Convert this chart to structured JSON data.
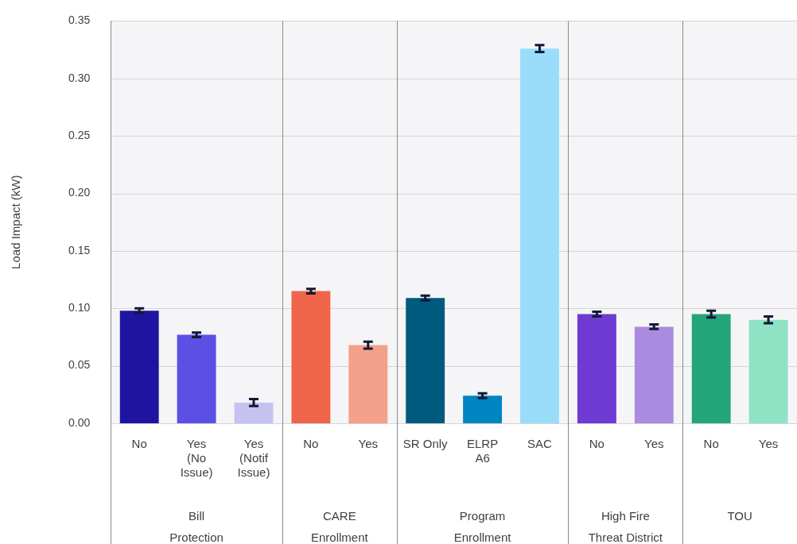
{
  "chart_data": {
    "type": "bar",
    "ylabel": "Load Impact (kW)",
    "categories": [
      "No",
      "Yes (No Issue)",
      "Yes (Notif Issue)",
      "No",
      "Yes",
      "SR Only",
      "ELRP A6",
      "SAC",
      "No",
      "Yes",
      "No",
      "Yes"
    ],
    "values": [
      0.098,
      0.077,
      0.018,
      0.115,
      0.068,
      0.109,
      0.024,
      0.326,
      0.095,
      0.084,
      0.095,
      0.09
    ],
    "errors": [
      0.002,
      0.002,
      0.003,
      0.002,
      0.003,
      0.002,
      0.002,
      0.003,
      0.002,
      0.002,
      0.003,
      0.003
    ],
    "colors": [
      "#1f14a0",
      "#5b4fe6",
      "#c5c2f2",
      "#f0654a",
      "#f4a08b",
      "#005a7e",
      "#0085c0",
      "#99ddfb",
      "#6e3ad1",
      "#a98ce0",
      "#23a57a",
      "#8ee3c5"
    ],
    "annotations": [
      "Bill Protection",
      "CARE Enrollment",
      "Program Enrollment",
      "High Fire Threat District",
      "TOU"
    ],
    "ylim": [
      0,
      0.35
    ],
    "yticks": [
      {
        "value": 0,
        "label": "0.00"
      },
      {
        "value": 0.05,
        "label": "0.05"
      },
      {
        "value": 0.1,
        "label": "0.10"
      },
      {
        "value": 0.15,
        "label": "0.15"
      },
      {
        "value": 0.2,
        "label": "0.20"
      },
      {
        "value": 0.25,
        "label": "0.25"
      },
      {
        "value": 0.3,
        "label": "0.30"
      },
      {
        "value": 0.35,
        "label": "0.35"
      }
    ],
    "grid": "y",
    "legend": false
  }
}
